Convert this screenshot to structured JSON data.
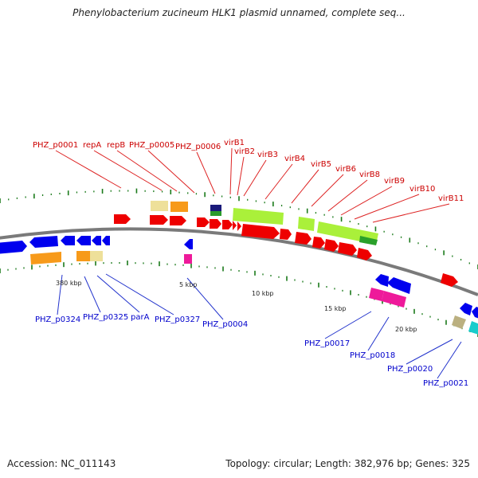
{
  "title": "Phenylobacterium zucineum HLK1 plasmid unnamed, complete seq...",
  "accession": "Accession: NC_011143",
  "stats": "Topology: circular; Length: 382,976 bp; Genes: 325",
  "colors": {
    "backbone": "#7a7a7a",
    "tick": "#1a7a1a",
    "forward_label": "#cc0000",
    "reverse_label": "#0000cc"
  },
  "scale_labels": [
    "380 kbp",
    "5 kbp",
    "10 kbp",
    "15 kbp",
    "20 kbp"
  ],
  "top_labels": [
    "PHZ_p0001",
    "repA",
    "repB",
    "PHZ_p0005",
    "PHZ_p0006",
    "virB1",
    "virB2",
    "virB3",
    "virB4",
    "virB5",
    "virB6",
    "virB8",
    "virB9",
    "virB10",
    "virB11"
  ],
  "bottom_labels": [
    "PHZ_p0324",
    "PHZ_p0325",
    "parA",
    "PHZ_p0327",
    "PHZ_p0004",
    "PHZ_p0017",
    "PHZ_p0018",
    "PHZ_p0020",
    "PHZ_p0021"
  ]
}
